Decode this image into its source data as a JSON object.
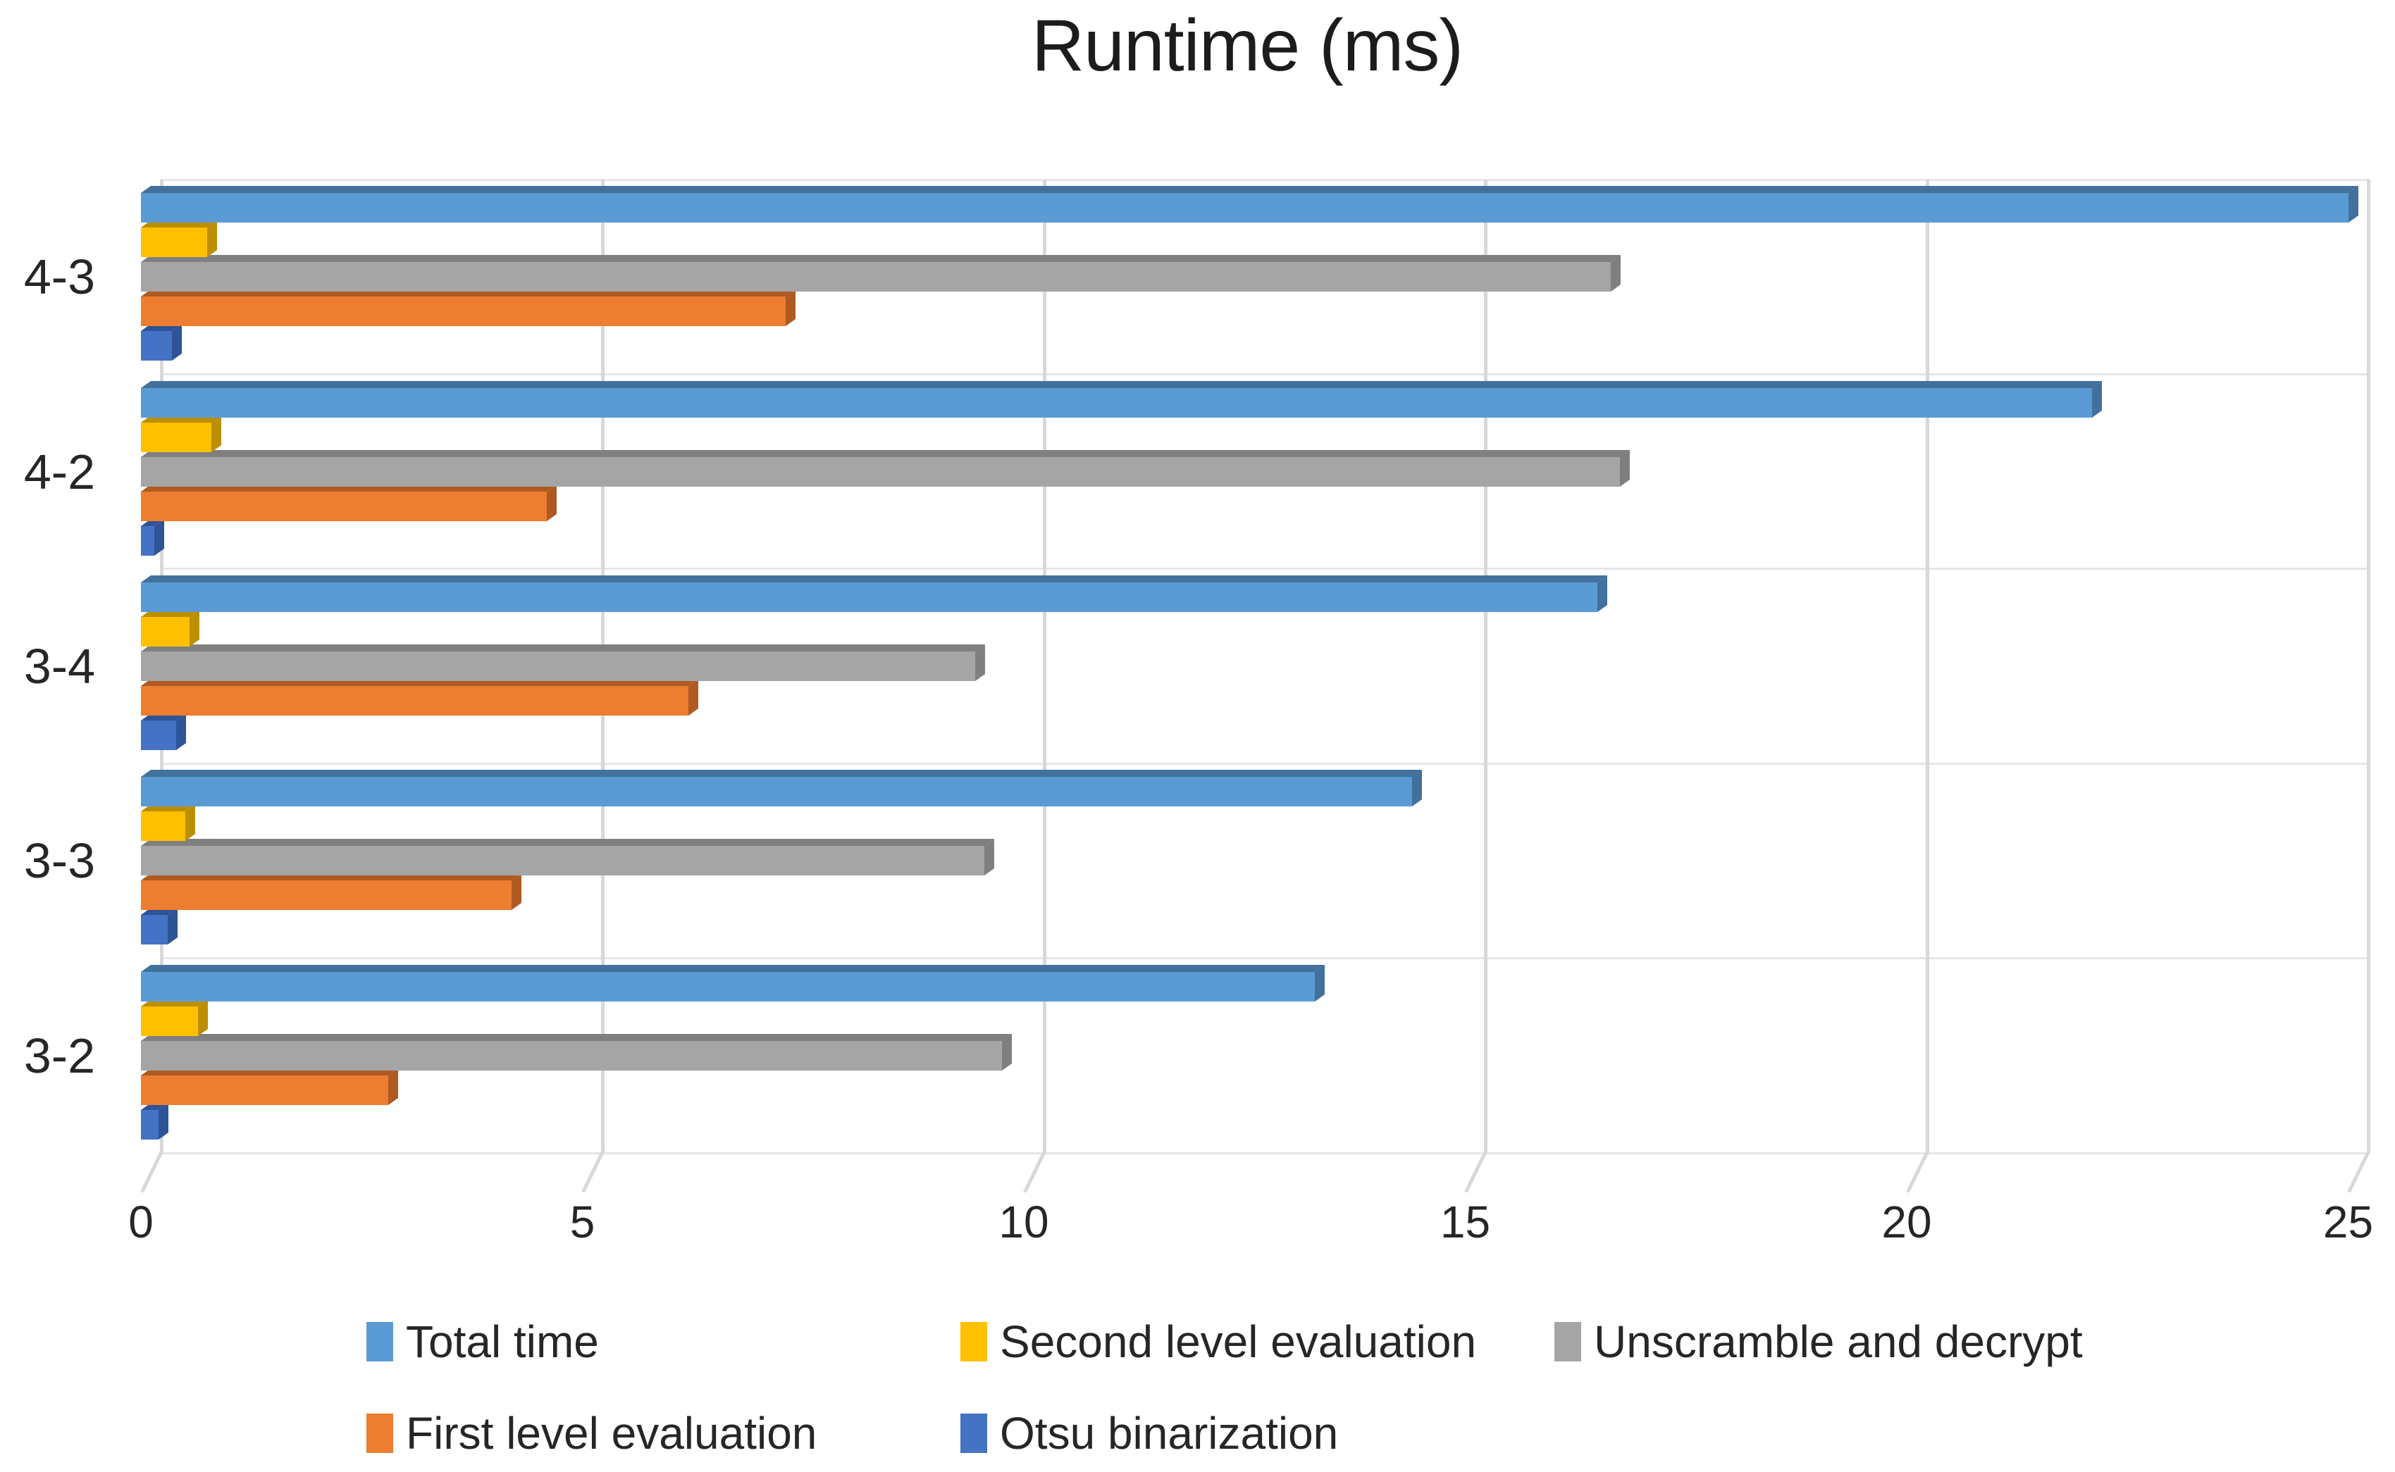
{
  "title": "Runtime (ms)",
  "chart_data": {
    "type": "bar",
    "orientation": "horizontal",
    "title": "Runtime (ms)",
    "xlabel": "",
    "ylabel": "",
    "xlim": [
      0,
      25
    ],
    "grid": true,
    "legend_position": "bottom",
    "categories": [
      "4-3",
      "4-2",
      "3-4",
      "3-3",
      "3-2"
    ],
    "x_axis": {
      "ticks": [
        0,
        5,
        10,
        15,
        20,
        25
      ]
    },
    "series": [
      {
        "name": "Total time",
        "color": "#5B9BD5",
        "dark": "#41719C",
        "values": [
          25.0,
          22.1,
          16.5,
          14.4,
          13.3
        ]
      },
      {
        "name": "Second level evaluation",
        "color": "#FFC000",
        "dark": "#BC8F00",
        "values": [
          0.75,
          0.8,
          0.55,
          0.5,
          0.65
        ]
      },
      {
        "name": "Unscramble and decrypt",
        "color": "#A5A5A5",
        "dark": "#7F7F7F",
        "values": [
          16.65,
          16.75,
          9.45,
          9.55,
          9.75
        ]
      },
      {
        "name": "First level evaluation",
        "color": "#ED7D31",
        "dark": "#AE5A21",
        "values": [
          7.3,
          4.6,
          6.2,
          4.2,
          2.8
        ]
      },
      {
        "name": "Otsu binarization",
        "color": "#4472C4",
        "dark": "#2E5396",
        "values": [
          0.35,
          0.15,
          0.4,
          0.3,
          0.2
        ]
      }
    ],
    "legend_rows": [
      [
        "Total time",
        "Second level evaluation",
        "Unscramble and decrypt"
      ],
      [
        "First level evaluation",
        "Otsu binarization"
      ]
    ]
  }
}
